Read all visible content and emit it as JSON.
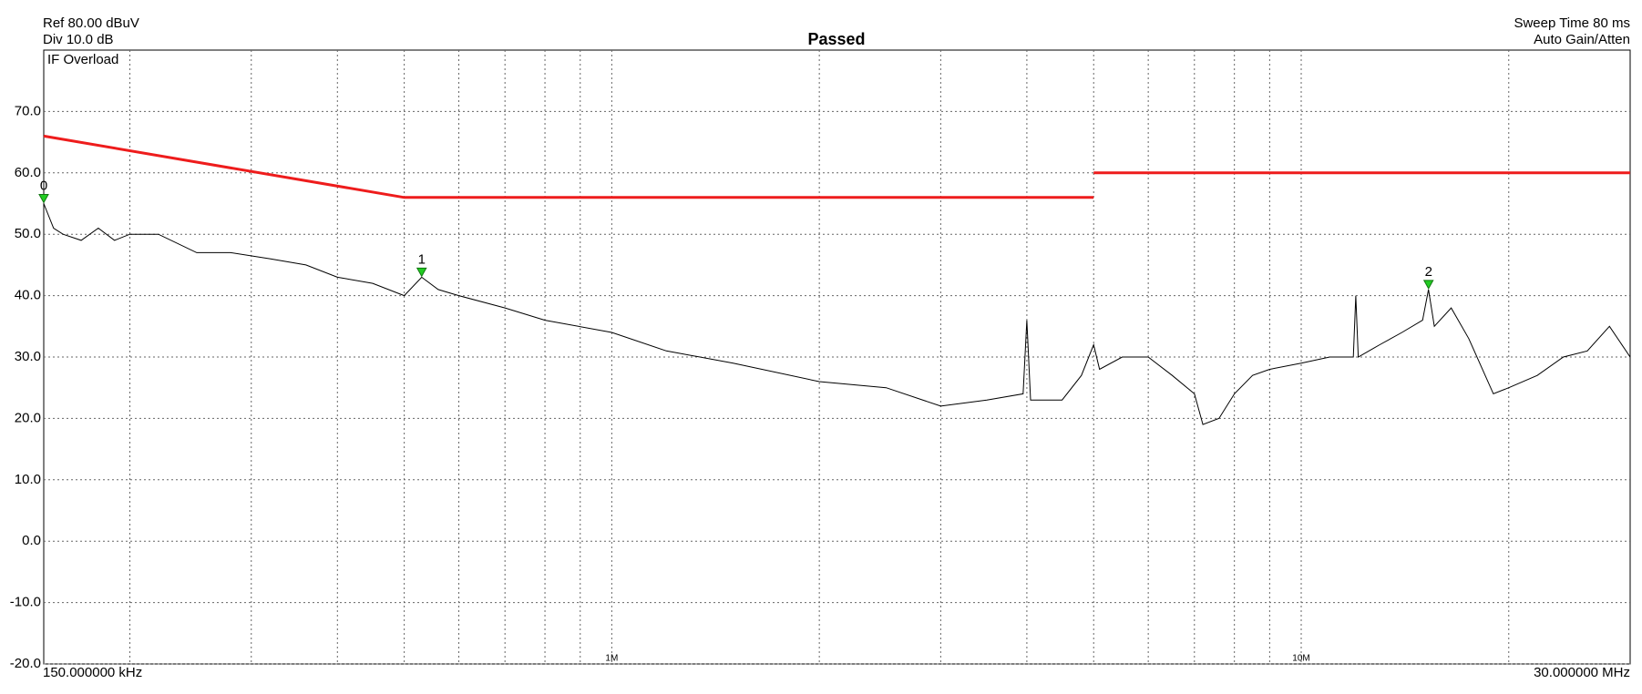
{
  "chart_data": {
    "type": "line",
    "title": "Passed",
    "title_color": "#1aaa3c",
    "header_left": [
      "Ref 80.00 dBuV",
      "Div 10.0 dB"
    ],
    "header_right": [
      "Sweep Time 80 ms",
      "Auto Gain/Atten"
    ],
    "status": "IF Overload",
    "x_start_label": "150.000000 kHz",
    "x_stop_label": "30.000000 MHz",
    "xlog": true,
    "grid": true,
    "xlim": [
      0.15,
      30
    ],
    "xticks": [
      {
        "value": 1,
        "label": "1M"
      },
      {
        "value": 10,
        "label": "10M"
      }
    ],
    "x_minor_grid": [
      0.2,
      0.3,
      0.4,
      0.5,
      0.6,
      0.7,
      0.8,
      0.9,
      1,
      2,
      3,
      4,
      5,
      6,
      7,
      8,
      9,
      10,
      20
    ],
    "ylim": [
      -20,
      80
    ],
    "yticks": [
      {
        "value": -20,
        "label": "-20.0"
      },
      {
        "value": -10,
        "label": "-10.0"
      },
      {
        "value": 0,
        "label": "0.0"
      },
      {
        "value": 10,
        "label": "10.0"
      },
      {
        "value": 20,
        "label": "20.0"
      },
      {
        "value": 30,
        "label": "30.0"
      },
      {
        "value": 40,
        "label": "40.0"
      },
      {
        "value": 50,
        "label": "50.0"
      },
      {
        "value": 60,
        "label": "60.0"
      },
      {
        "value": 70,
        "label": "70.0"
      }
    ],
    "series": [
      {
        "color": "#000000",
        "width": 1,
        "x": [
          0.15,
          0.155,
          0.16,
          0.17,
          0.18,
          0.19,
          0.2,
          0.22,
          0.25,
          0.28,
          0.32,
          0.36,
          0.4,
          0.45,
          0.5,
          0.53,
          0.56,
          0.6,
          0.7,
          0.8,
          1.0,
          1.2,
          1.5,
          2.0,
          2.5,
          3.0,
          3.5,
          3.95,
          4.0,
          4.05,
          4.5,
          4.8,
          5.0,
          5.1,
          5.5,
          6,
          6.5,
          7,
          7.2,
          7.6,
          8,
          8.5,
          9,
          10,
          11,
          11.9,
          12,
          12.1,
          13,
          14,
          15,
          15.3,
          15.6,
          16.5,
          17.5,
          19,
          20,
          22,
          24,
          26,
          28,
          30
        ],
        "values": [
          55,
          51,
          50,
          49,
          51,
          49,
          50,
          50,
          47,
          47,
          46,
          45,
          43,
          42,
          40,
          43,
          41,
          40,
          38,
          36,
          34,
          31,
          29,
          26,
          25,
          22,
          23,
          24,
          36,
          23,
          23,
          27,
          32,
          28,
          30,
          30,
          27,
          24,
          19,
          20,
          24,
          27,
          28,
          29,
          30,
          30,
          40,
          30,
          32,
          34,
          36,
          41,
          35,
          38,
          33,
          24,
          25,
          27,
          30,
          31,
          35,
          30
        ]
      },
      {
        "color": "#ee1c1c",
        "width": 3,
        "x": [
          0.15,
          0.5,
          5,
          5,
          5,
          30
        ],
        "values": [
          66,
          56,
          56,
          null,
          60,
          60
        ]
      }
    ],
    "markers": [
      {
        "label": "0",
        "x": 0.15,
        "y": 55
      },
      {
        "label": "1",
        "x": 0.53,
        "y": 43
      },
      {
        "label": "2",
        "x": 15.3,
        "y": 41
      }
    ],
    "marker_color": "#22cc22"
  }
}
